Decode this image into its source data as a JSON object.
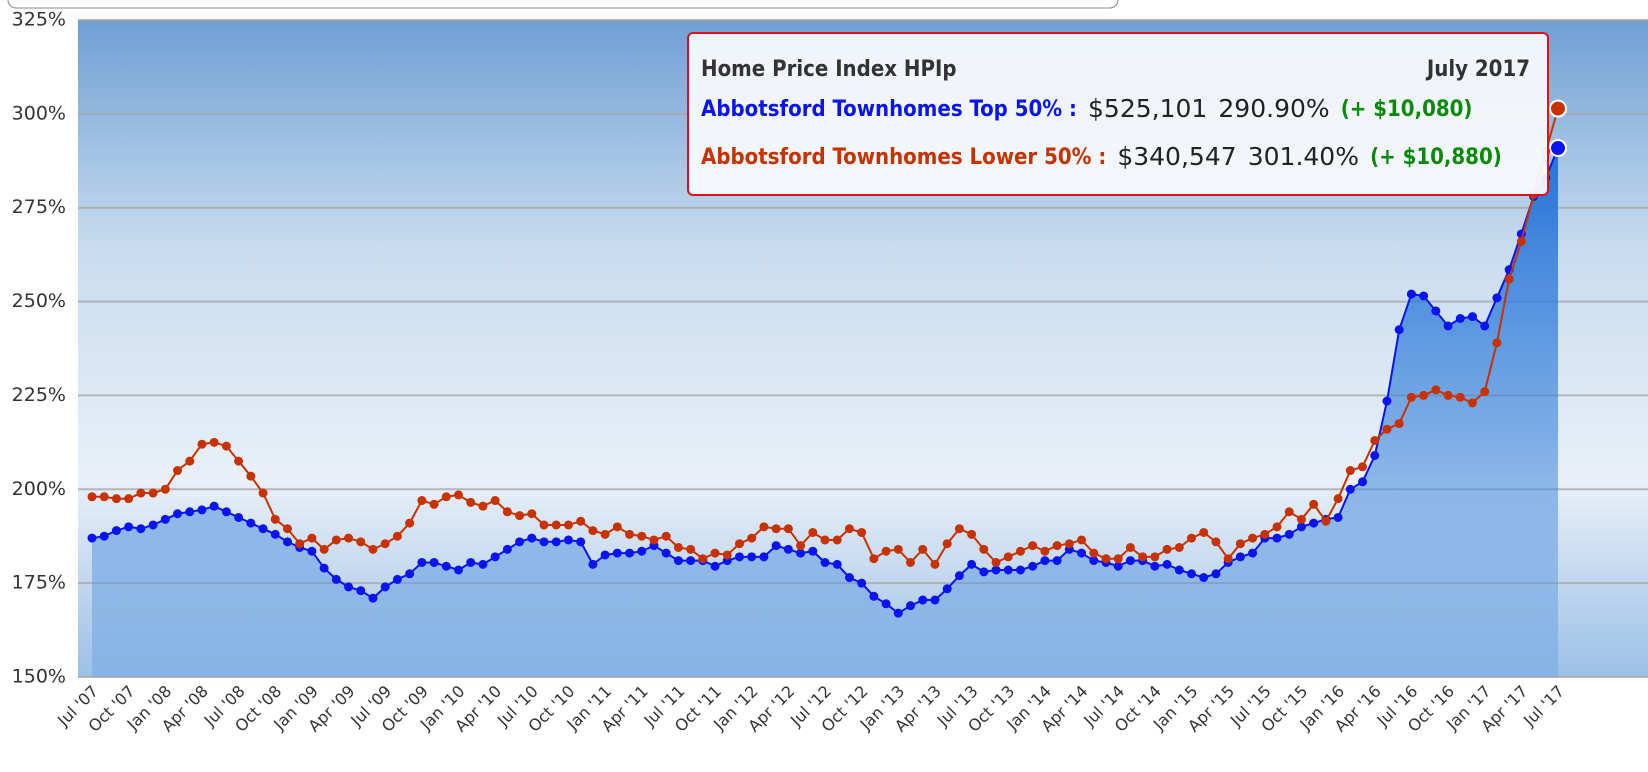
{
  "chart_data": {
    "type": "line",
    "categories": [
      "Jul '07",
      null,
      null,
      "Oct '07",
      null,
      null,
      "Jan '08",
      null,
      null,
      "Apr '08",
      null,
      null,
      "Jul '08",
      null,
      null,
      "Oct '08",
      null,
      null,
      "Jan '09",
      null,
      null,
      "Apr '09",
      null,
      null,
      "Jul '09",
      null,
      null,
      "Oct '09",
      null,
      null,
      "Jan '10",
      null,
      null,
      "Apr '10",
      null,
      null,
      "Jul '10",
      null,
      null,
      "Oct '10",
      null,
      null,
      "Jan '11",
      null,
      null,
      "Apr '11",
      null,
      null,
      "Jul '11",
      null,
      null,
      "Oct '11",
      null,
      null,
      "Jan '12",
      null,
      null,
      "Apr '12",
      null,
      null,
      "Jul '12",
      null,
      null,
      "Oct '12",
      null,
      null,
      "Jan '13",
      null,
      null,
      "Apr '13",
      null,
      null,
      "Jul '13",
      null,
      null,
      "Oct '13",
      null,
      null,
      "Jan '14",
      null,
      null,
      "Apr '14",
      null,
      null,
      "Jul '14",
      null,
      null,
      "Oct '14",
      null,
      null,
      "Jan '15",
      null,
      null,
      "Apr '15",
      null,
      null,
      "Jul '15",
      null,
      null,
      "Oct '15",
      null,
      null,
      "Jan '16",
      null,
      null,
      "Apr '16",
      null,
      null,
      "Jul '16",
      null,
      null,
      "Oct '16",
      null,
      null,
      "Jan '17",
      null,
      null,
      "Apr '17",
      null,
      null,
      "Jul '17"
    ],
    "series": [
      {
        "name": "Abbotsford Townhomes Top 50%",
        "color": "#0a14f0",
        "area": true,
        "values": [
          187,
          187.5,
          189,
          190,
          189.5,
          190.5,
          192,
          193.5,
          194,
          194.5,
          195.5,
          194,
          192.5,
          191,
          189.5,
          188,
          186,
          184.5,
          183.5,
          179,
          176,
          174,
          173,
          171,
          174,
          176,
          177.5,
          180.5,
          180.5,
          179.5,
          178.5,
          180.5,
          180,
          182,
          184,
          186,
          187,
          186,
          186,
          186.5,
          186,
          180,
          182.5,
          183,
          183,
          183.5,
          185,
          183,
          181,
          181,
          181,
          179.5,
          181,
          182,
          182,
          182,
          185,
          184,
          183,
          183.5,
          180.5,
          180,
          176.5,
          175,
          171.5,
          169.5,
          167,
          169,
          170.5,
          170.5,
          173.5,
          177,
          180,
          178,
          178.5,
          178.5,
          178.5,
          179.5,
          181,
          181,
          184,
          183,
          181,
          180.5,
          179.5,
          181,
          181,
          179.5,
          180,
          178.5,
          177.5,
          176.5,
          177.5,
          180.5,
          182,
          183,
          187,
          187,
          188,
          190,
          191,
          192,
          192.5,
          200,
          202,
          209,
          223.5,
          242.5,
          252,
          251.5,
          247.5,
          243.5,
          245.5,
          246,
          243.5,
          251,
          258.5,
          268,
          278,
          283,
          290.9
        ]
      },
      {
        "name": "Abbotsford Townhomes Lower 50%",
        "color": "#c83200",
        "values": [
          198,
          198,
          197.5,
          197.5,
          199,
          199,
          200,
          205,
          207.5,
          212,
          212.5,
          211.5,
          207.5,
          203.5,
          199,
          192,
          189.5,
          185.5,
          187,
          184,
          186.5,
          187,
          186,
          184,
          185.5,
          187.5,
          191,
          197,
          196,
          198,
          198.5,
          196.5,
          195.5,
          197,
          194,
          193,
          193.5,
          190.5,
          190.5,
          190.5,
          191.5,
          189,
          188,
          190,
          188,
          187.5,
          186.5,
          187.5,
          184.5,
          184,
          181.5,
          183,
          182.5,
          185.5,
          187,
          190,
          189.5,
          189.5,
          185,
          188.5,
          186.5,
          186.5,
          189.5,
          188.5,
          181.5,
          183.5,
          184,
          180.5,
          184,
          180,
          185.5,
          189.5,
          188,
          184,
          180.5,
          182,
          183.5,
          185,
          183.5,
          185,
          185.5,
          186.5,
          183,
          181.5,
          181.5,
          184.5,
          182,
          182,
          184,
          184.5,
          187,
          188.5,
          186,
          181.5,
          185.5,
          187,
          188,
          190,
          194,
          192,
          196,
          191.5,
          197.5,
          205,
          206,
          213,
          216,
          217.5,
          224.5,
          225,
          226.5,
          225,
          224.5,
          223,
          226,
          239,
          256,
          266,
          278.5,
          290,
          301.4
        ]
      }
    ],
    "ylim": [
      150,
      325
    ],
    "yticks": [
      {
        "value": 150,
        "label": "150%"
      },
      {
        "value": 175,
        "label": "175%"
      },
      {
        "value": 200,
        "label": "200%"
      },
      {
        "value": 225,
        "label": "225%"
      },
      {
        "value": 250,
        "label": "250%"
      },
      {
        "value": 275,
        "label": "275%"
      },
      {
        "value": 300,
        "label": "300%"
      },
      {
        "value": 325,
        "label": "325%"
      }
    ],
    "grid": true,
    "tooltip": {
      "title": "Home Price Index HPIp",
      "date": "July 2017",
      "entries": [
        {
          "label": "Abbotsford Townhomes Top 50% :",
          "price": "$525,101",
          "index": "290.90%",
          "change": "(+ $10,080)"
        },
        {
          "label": "Abbotsford Townhomes Lower 50% :",
          "price": "$340,547",
          "index": "301.40%",
          "change": "(+ $10,880)"
        }
      ]
    }
  }
}
